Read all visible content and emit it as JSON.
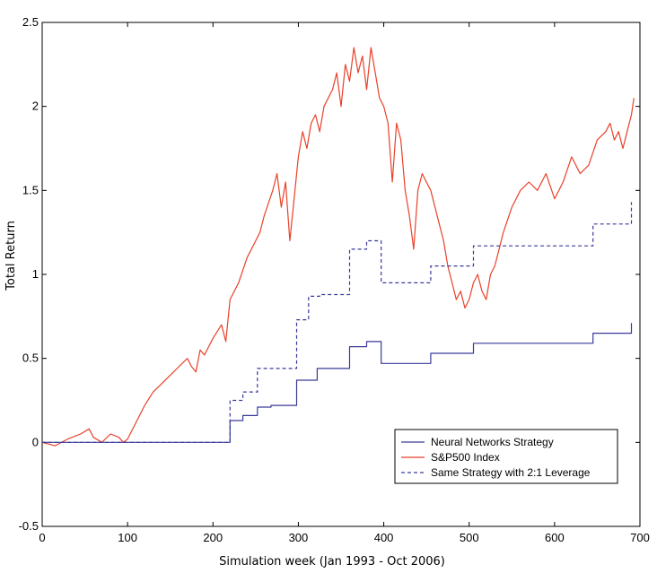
{
  "chart_data": {
    "type": "line",
    "title": "",
    "xlabel": "Simulation week (Jan 1993 - Oct 2006)",
    "ylabel": "Total Return",
    "xlim": [
      0,
      700
    ],
    "ylim": [
      -0.5,
      2.5
    ],
    "xticks": [
      0,
      100,
      200,
      300,
      400,
      500,
      600,
      700
    ],
    "yticks": [
      -0.5,
      0,
      0.5,
      1,
      1.5,
      2,
      2.5
    ],
    "xtick_labels": [
      "0",
      "100",
      "200",
      "300",
      "400",
      "500",
      "600",
      "700"
    ],
    "ytick_labels": [
      "-0.5",
      "0",
      "0.5",
      "1",
      "1.5",
      "2",
      "2.5"
    ],
    "legend_position": "bottom-right",
    "series": [
      {
        "name": "Neural Networks Strategy",
        "color": "#3a3a9a",
        "style": "solid",
        "x": [
          0,
          220,
          220,
          235,
          235,
          252,
          252,
          268,
          268,
          298,
          298,
          322,
          322,
          360,
          360,
          380,
          380,
          397,
          397,
          455,
          455,
          505,
          505,
          645,
          645,
          690,
          690
        ],
        "y": [
          0,
          0,
          0.13,
          0.13,
          0.16,
          0.16,
          0.21,
          0.21,
          0.22,
          0.22,
          0.37,
          0.37,
          0.44,
          0.44,
          0.57,
          0.57,
          0.6,
          0.6,
          0.47,
          0.47,
          0.53,
          0.53,
          0.59,
          0.59,
          0.65,
          0.65,
          0.71
        ]
      },
      {
        "name": "S&P500 Index",
        "color": "#e8412a",
        "style": "solid",
        "x": [
          0,
          15,
          30,
          45,
          55,
          60,
          70,
          80,
          90,
          95,
          100,
          110,
          120,
          130,
          140,
          150,
          160,
          170,
          175,
          180,
          185,
          190,
          200,
          210,
          215,
          220,
          225,
          230,
          240,
          250,
          255,
          260,
          270,
          275,
          280,
          285,
          290,
          295,
          300,
          305,
          310,
          315,
          320,
          325,
          330,
          335,
          340,
          345,
          350,
          355,
          360,
          365,
          370,
          375,
          380,
          385,
          390,
          395,
          400,
          405,
          410,
          415,
          420,
          425,
          430,
          435,
          440,
          445,
          450,
          455,
          460,
          465,
          470,
          475,
          480,
          485,
          490,
          495,
          500,
          505,
          510,
          515,
          520,
          525,
          530,
          540,
          550,
          560,
          570,
          580,
          590,
          600,
          610,
          620,
          630,
          640,
          650,
          660,
          665,
          670,
          675,
          680,
          685,
          690,
          693
        ],
        "y": [
          0,
          -0.02,
          0.02,
          0.05,
          0.08,
          0.03,
          0.0,
          0.05,
          0.03,
          0.0,
          0.02,
          0.12,
          0.22,
          0.3,
          0.35,
          0.4,
          0.45,
          0.5,
          0.45,
          0.42,
          0.55,
          0.52,
          0.62,
          0.7,
          0.6,
          0.85,
          0.9,
          0.95,
          1.1,
          1.2,
          1.25,
          1.35,
          1.5,
          1.6,
          1.4,
          1.55,
          1.2,
          1.45,
          1.7,
          1.85,
          1.75,
          1.9,
          1.95,
          1.85,
          2.0,
          2.05,
          2.1,
          2.2,
          2.0,
          2.25,
          2.15,
          2.35,
          2.2,
          2.3,
          2.1,
          2.35,
          2.2,
          2.05,
          2.0,
          1.9,
          1.55,
          1.9,
          1.8,
          1.5,
          1.35,
          1.15,
          1.5,
          1.6,
          1.55,
          1.5,
          1.4,
          1.3,
          1.2,
          1.05,
          0.95,
          0.85,
          0.9,
          0.8,
          0.85,
          0.95,
          1.0,
          0.9,
          0.85,
          1.0,
          1.05,
          1.25,
          1.4,
          1.5,
          1.55,
          1.5,
          1.6,
          1.45,
          1.55,
          1.7,
          1.6,
          1.65,
          1.8,
          1.85,
          1.9,
          1.8,
          1.85,
          1.75,
          1.85,
          1.95,
          2.05
        ]
      },
      {
        "name": "Same Strategy with 2:1 Leverage",
        "color": "#3a3a9a",
        "style": "dashed",
        "x": [
          0,
          220,
          220,
          235,
          235,
          252,
          252,
          298,
          298,
          312,
          312,
          325,
          325,
          360,
          360,
          380,
          380,
          397,
          397,
          455,
          455,
          505,
          505,
          645,
          645,
          690,
          690
        ],
        "y": [
          0,
          0,
          0.25,
          0.25,
          0.3,
          0.3,
          0.44,
          0.44,
          0.73,
          0.73,
          0.87,
          0.87,
          0.88,
          0.88,
          1.15,
          1.15,
          1.2,
          1.2,
          0.95,
          0.95,
          1.05,
          1.05,
          1.17,
          1.17,
          1.3,
          1.3,
          1.43
        ]
      }
    ]
  }
}
